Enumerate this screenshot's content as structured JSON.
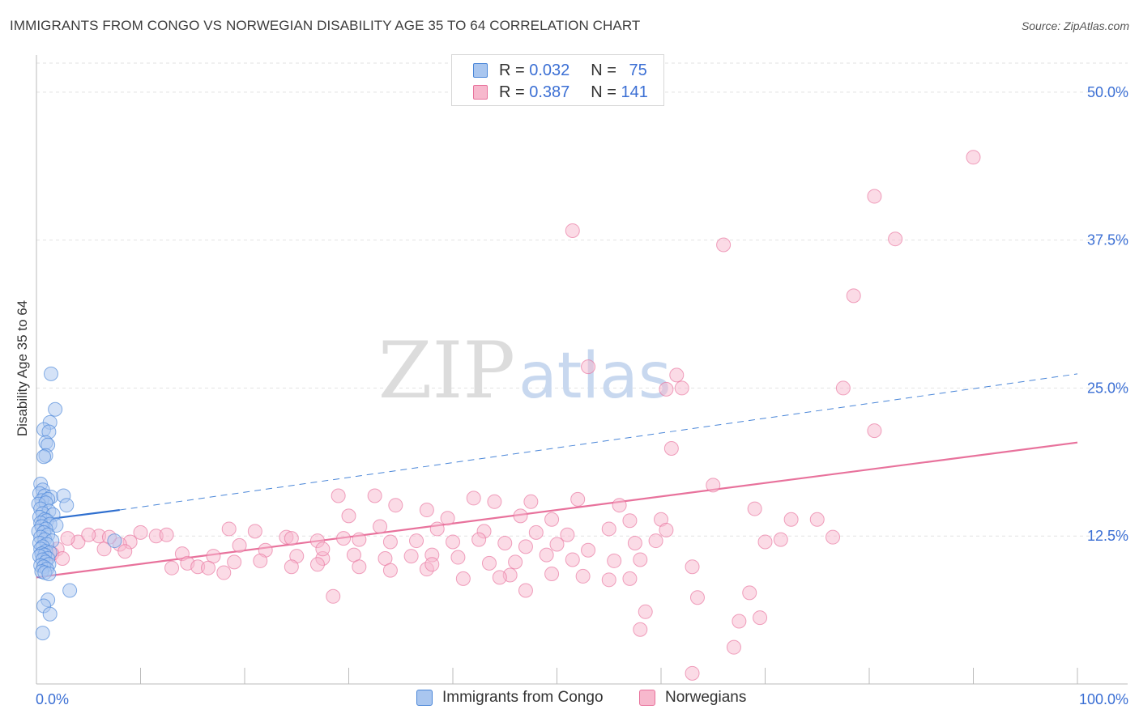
{
  "chart_data": {
    "type": "scatter",
    "title": "IMMIGRANTS FROM CONGO VS NORWEGIAN DISABILITY AGE 35 TO 64 CORRELATION CHART",
    "source": "Source: ZipAtlas.com",
    "ylabel": "Disability Age 35 to 64",
    "xlabel": "",
    "xlim": [
      0,
      100
    ],
    "ylim": [
      0,
      53
    ],
    "x_tick_labels": [
      "0.0%",
      "100.0%"
    ],
    "y_ticks": [
      12.5,
      25.0,
      37.5,
      50.0
    ],
    "y_tick_labels": [
      "12.5%",
      "25.0%",
      "37.5%",
      "50.0%"
    ],
    "watermark": {
      "part1": "ZIP",
      "part2": "atlas"
    },
    "legend": [
      {
        "r_label": "R =",
        "r_value": "0.032",
        "n_label": "N =",
        "n_value": "75"
      },
      {
        "r_label": "R =",
        "r_value": "0.387",
        "n_label": "N =",
        "n_value": "141"
      }
    ],
    "series": [
      {
        "name": "Immigrants from Congo",
        "color": "#4a86d8",
        "fill": "#a9c6ef",
        "trend": {
          "x": [
            0,
            8
          ],
          "y": [
            13.8,
            14.7
          ]
        },
        "trend_dashed": {
          "x": [
            8,
            100
          ],
          "y": [
            14.7,
            26.2
          ]
        },
        "points": [
          [
            1.4,
            26.2
          ],
          [
            1.8,
            23.2
          ],
          [
            1.3,
            22.1
          ],
          [
            0.7,
            21.5
          ],
          [
            1.2,
            21.3
          ],
          [
            0.9,
            20.4
          ],
          [
            1.1,
            20.2
          ],
          [
            0.9,
            19.3
          ],
          [
            0.7,
            19.2
          ],
          [
            0.4,
            16.9
          ],
          [
            0.6,
            16.4
          ],
          [
            0.3,
            16.1
          ],
          [
            0.8,
            15.9
          ],
          [
            1.4,
            15.8
          ],
          [
            2.6,
            15.9
          ],
          [
            0.5,
            15.5
          ],
          [
            1.1,
            15.6
          ],
          [
            0.2,
            15.2
          ],
          [
            0.9,
            15.3
          ],
          [
            2.9,
            15.1
          ],
          [
            0.4,
            14.8
          ],
          [
            1.2,
            14.6
          ],
          [
            0.6,
            14.4
          ],
          [
            1.6,
            14.3
          ],
          [
            0.3,
            14.1
          ],
          [
            0.8,
            13.9
          ],
          [
            1.0,
            13.8
          ],
          [
            0.4,
            13.6
          ],
          [
            1.3,
            13.5
          ],
          [
            1.9,
            13.4
          ],
          [
            0.5,
            13.3
          ],
          [
            0.9,
            13.1
          ],
          [
            0.2,
            12.9
          ],
          [
            0.7,
            12.8
          ],
          [
            1.1,
            12.6
          ],
          [
            0.4,
            12.4
          ],
          [
            0.8,
            12.2
          ],
          [
            1.5,
            12.1
          ],
          [
            0.3,
            11.9
          ],
          [
            1.0,
            11.8
          ],
          [
            0.6,
            11.6
          ],
          [
            0.4,
            11.4
          ],
          [
            0.9,
            11.2
          ],
          [
            1.3,
            11.1
          ],
          [
            0.5,
            11.0
          ],
          [
            0.8,
            10.9
          ],
          [
            0.3,
            10.8
          ],
          [
            1.1,
            10.6
          ],
          [
            0.6,
            10.5
          ],
          [
            0.9,
            10.3
          ],
          [
            1.2,
            10.1
          ],
          [
            0.4,
            10.0
          ],
          [
            0.7,
            9.9
          ],
          [
            1.0,
            9.7
          ],
          [
            0.5,
            9.5
          ],
          [
            0.8,
            9.4
          ],
          [
            1.2,
            9.3
          ],
          [
            3.2,
            7.9
          ],
          [
            1.1,
            7.1
          ],
          [
            0.7,
            6.6
          ],
          [
            1.3,
            5.9
          ],
          [
            0.6,
            4.3
          ],
          [
            7.5,
            12.1
          ]
        ]
      },
      {
        "name": "Norwegians",
        "color": "#e8729c",
        "fill": "#f7b8cd",
        "trend": {
          "x": [
            0,
            100
          ],
          "y": [
            9.0,
            20.4
          ]
        },
        "points": [
          [
            90,
            44.5
          ],
          [
            80.5,
            41.2
          ],
          [
            51.5,
            38.3
          ],
          [
            66,
            37.1
          ],
          [
            82.5,
            37.6
          ],
          [
            78.5,
            32.8
          ],
          [
            53,
            26.8
          ],
          [
            61.5,
            26.1
          ],
          [
            60.5,
            24.9
          ],
          [
            62,
            25.0
          ],
          [
            77.5,
            25.0
          ],
          [
            80.5,
            21.4
          ],
          [
            61,
            19.9
          ],
          [
            65,
            16.8
          ],
          [
            29,
            15.9
          ],
          [
            32.5,
            15.9
          ],
          [
            42,
            15.7
          ],
          [
            52,
            15.6
          ],
          [
            56,
            15.1
          ],
          [
            47.5,
            15.4
          ],
          [
            44,
            15.4
          ],
          [
            34.5,
            15.1
          ],
          [
            37.5,
            14.7
          ],
          [
            69,
            14.8
          ],
          [
            72.5,
            13.9
          ],
          [
            75,
            13.9
          ],
          [
            60,
            13.9
          ],
          [
            57,
            13.8
          ],
          [
            49.5,
            13.9
          ],
          [
            46.5,
            14.2
          ],
          [
            39.5,
            14.0
          ],
          [
            30,
            14.2
          ],
          [
            33,
            13.3
          ],
          [
            38.5,
            13.1
          ],
          [
            43,
            12.9
          ],
          [
            48,
            12.8
          ],
          [
            55,
            13.1
          ],
          [
            18.5,
            13.1
          ],
          [
            21,
            12.9
          ],
          [
            24,
            12.4
          ],
          [
            27,
            12.1
          ],
          [
            29.5,
            12.3
          ],
          [
            31,
            12.2
          ],
          [
            34,
            12.0
          ],
          [
            36.5,
            12.1
          ],
          [
            40,
            12.0
          ],
          [
            42.5,
            12.2
          ],
          [
            45,
            11.9
          ],
          [
            47,
            11.6
          ],
          [
            50,
            11.8
          ],
          [
            53,
            11.3
          ],
          [
            57.5,
            11.9
          ],
          [
            59.5,
            12.1
          ],
          [
            70,
            12.0
          ],
          [
            71.5,
            12.2
          ],
          [
            76.5,
            12.4
          ],
          [
            10,
            12.8
          ],
          [
            11.5,
            12.5
          ],
          [
            12.5,
            12.6
          ],
          [
            9,
            12.0
          ],
          [
            8,
            11.8
          ],
          [
            6,
            12.5
          ],
          [
            7,
            12.4
          ],
          [
            4,
            12.0
          ],
          [
            5,
            12.6
          ],
          [
            3,
            12.3
          ],
          [
            2,
            11.4
          ],
          [
            1.5,
            11.0
          ],
          [
            2.5,
            10.6
          ],
          [
            6.5,
            11.4
          ],
          [
            8.5,
            11.2
          ],
          [
            14,
            11.0
          ],
          [
            17,
            10.8
          ],
          [
            19.5,
            11.7
          ],
          [
            22,
            11.3
          ],
          [
            25,
            10.8
          ],
          [
            27.5,
            10.6
          ],
          [
            30.5,
            10.9
          ],
          [
            33.5,
            10.6
          ],
          [
            36,
            10.8
          ],
          [
            38,
            10.9
          ],
          [
            40.5,
            10.7
          ],
          [
            43.5,
            10.2
          ],
          [
            46,
            10.3
          ],
          [
            49,
            10.9
          ],
          [
            51.5,
            10.5
          ],
          [
            55.5,
            10.4
          ],
          [
            14.5,
            10.2
          ],
          [
            15.5,
            9.9
          ],
          [
            16.5,
            9.8
          ],
          [
            13,
            9.8
          ],
          [
            18,
            9.4
          ],
          [
            19,
            10.3
          ],
          [
            21.5,
            10.4
          ],
          [
            24.5,
            9.9
          ],
          [
            27,
            10.1
          ],
          [
            31,
            9.9
          ],
          [
            34,
            9.6
          ],
          [
            37.5,
            9.7
          ],
          [
            41,
            8.9
          ],
          [
            45.5,
            9.2
          ],
          [
            49.5,
            9.3
          ],
          [
            52.5,
            9.1
          ],
          [
            55,
            8.8
          ],
          [
            57,
            8.9
          ],
          [
            58,
            10.5
          ],
          [
            63,
            9.9
          ],
          [
            47,
            7.9
          ],
          [
            68.5,
            7.7
          ],
          [
            28.5,
            7.4
          ],
          [
            63.5,
            7.3
          ],
          [
            58.5,
            6.1
          ],
          [
            58,
            4.6
          ],
          [
            67.5,
            5.3
          ],
          [
            69.5,
            5.6
          ],
          [
            67,
            3.1
          ],
          [
            63,
            0.9
          ],
          [
            38,
            10.1
          ],
          [
            44.5,
            9.0
          ],
          [
            24.5,
            12.3
          ],
          [
            27.5,
            11.4
          ],
          [
            51,
            12.6
          ],
          [
            60.5,
            13.0
          ]
        ]
      }
    ]
  }
}
